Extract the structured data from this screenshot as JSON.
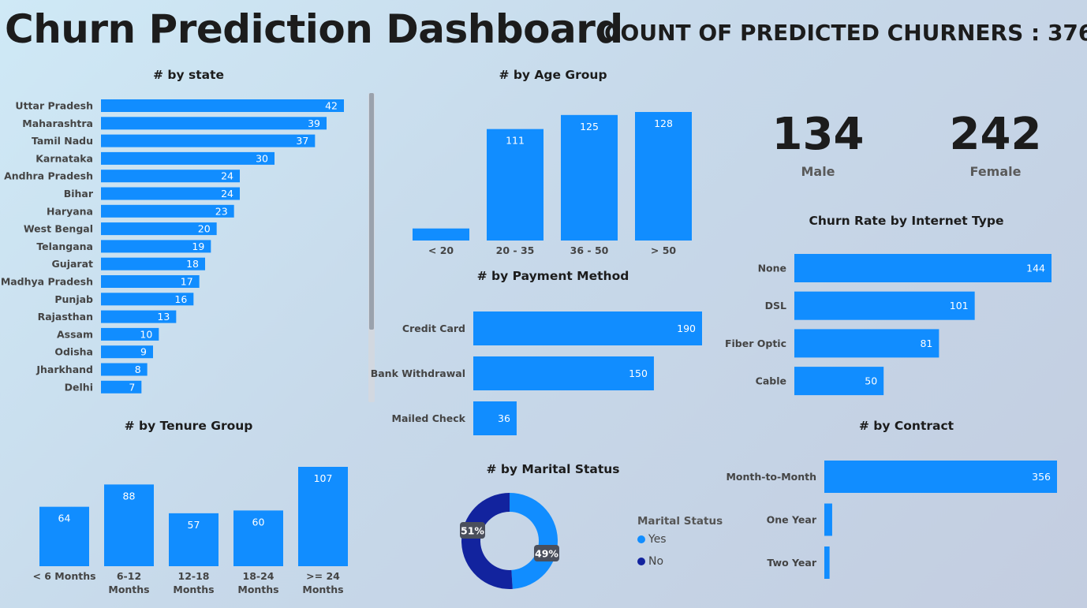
{
  "header": {
    "title": "Churn Prediction Dashboard",
    "count_label": "COUNT OF PREDICTED CHURNERS : 376"
  },
  "colors": {
    "bar": "#118dff",
    "dark": "#12239e"
  },
  "gender": {
    "male_count": "134",
    "male_label": "Male",
    "female_count": "242",
    "female_label": "Female"
  },
  "legend": {
    "title": "Marital Status",
    "items": [
      "Yes",
      "No"
    ]
  },
  "chart_data": [
    {
      "id": "state",
      "type": "bar",
      "orientation": "horizontal",
      "title": "# by state",
      "categories": [
        "Uttar Pradesh",
        "Maharashtra",
        "Tamil Nadu",
        "Karnataka",
        "Andhra Pradesh",
        "Bihar",
        "Haryana",
        "West Bengal",
        "Telangana",
        "Gujarat",
        "Madhya Pradesh",
        "Punjab",
        "Rajasthan",
        "Assam",
        "Odisha",
        "Jharkhand",
        "Delhi"
      ],
      "values": [
        42,
        39,
        37,
        30,
        24,
        24,
        23,
        20,
        19,
        18,
        17,
        16,
        13,
        10,
        9,
        8,
        7
      ]
    },
    {
      "id": "age",
      "type": "bar",
      "orientation": "vertical",
      "title": "# by Age Group",
      "categories": [
        "< 20",
        "20 - 35",
        "36 - 50",
        "> 50"
      ],
      "values": [
        12,
        111,
        125,
        128
      ],
      "labels": [
        "",
        "111",
        "125",
        "128"
      ]
    },
    {
      "id": "payment",
      "type": "bar",
      "orientation": "horizontal",
      "title": "# by Payment Method",
      "categories": [
        "Credit Card",
        "Bank Withdrawal",
        "Mailed Check"
      ],
      "values": [
        190,
        150,
        36
      ]
    },
    {
      "id": "internet",
      "type": "bar",
      "orientation": "horizontal",
      "title": "Churn Rate by Internet Type",
      "categories": [
        "None",
        "DSL",
        "Fiber Optic",
        "Cable"
      ],
      "values": [
        144,
        101,
        81,
        50
      ]
    },
    {
      "id": "tenure",
      "type": "bar",
      "orientation": "vertical",
      "title": "# by Tenure Group",
      "categories": [
        [
          "< 6 Months"
        ],
        [
          "6-12",
          "Months"
        ],
        [
          "12-18",
          "Months"
        ],
        [
          "18-24",
          "Months"
        ],
        [
          ">= 24",
          "Months"
        ]
      ],
      "values": [
        64,
        88,
        57,
        60,
        107
      ]
    },
    {
      "id": "marital",
      "type": "pie",
      "variant": "donut",
      "title": "# by Marital Status",
      "categories": [
        "Yes",
        "No"
      ],
      "values": [
        49,
        51
      ],
      "labels": [
        "49%",
        "51%"
      ]
    },
    {
      "id": "contract",
      "type": "bar",
      "orientation": "horizontal",
      "title": "# by Contract",
      "categories": [
        "Month-to-Month",
        "One Year",
        "Two Year"
      ],
      "values": [
        356,
        12,
        8
      ],
      "labels": [
        "356",
        "",
        ""
      ]
    }
  ]
}
